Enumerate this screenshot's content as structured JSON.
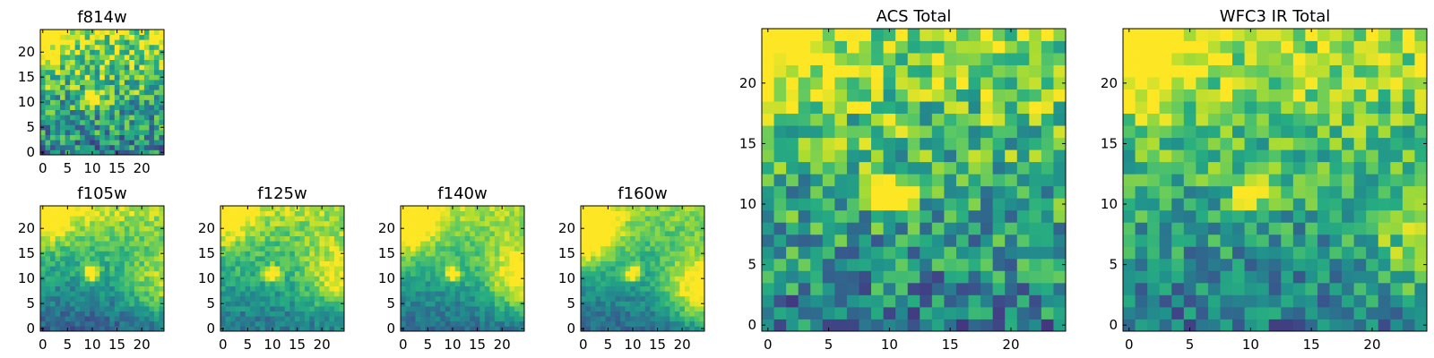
{
  "chart_data": [
    {
      "type": "heatmap",
      "title": "f814w",
      "grid": false,
      "xlim": [
        -0.5,
        24.5
      ],
      "ylim": [
        -0.5,
        24.5
      ],
      "xticks": [
        0,
        5,
        10,
        15,
        20
      ],
      "yticks": [
        0,
        5,
        10,
        15,
        20
      ],
      "colormap": "viridis",
      "peak": [
        10,
        11
      ],
      "source_hot": [
        {
          "x": 0,
          "y": 24,
          "sigma": 3.5,
          "amp": 0.5
        }
      ],
      "gradient": {
        "ax": 0.0,
        "ay": 0.018,
        "base": 0.45
      },
      "noise": 0.3
    },
    {
      "type": "heatmap",
      "title": "f105w",
      "grid": false,
      "xlim": [
        -0.5,
        24.5
      ],
      "ylim": [
        -0.5,
        24.5
      ],
      "xticks": [
        0,
        5,
        10,
        15,
        20
      ],
      "yticks": [
        0,
        5,
        10,
        15,
        20
      ],
      "colormap": "viridis",
      "peak": [
        10,
        11
      ],
      "source_hot": [
        {
          "x": 0,
          "y": 24,
          "sigma": 4,
          "amp": 0.6
        },
        {
          "x": 24,
          "y": 8,
          "sigma": 5,
          "amp": 0.35
        }
      ],
      "gradient": {
        "ax": 0.0,
        "ay": 0.025,
        "base": 0.3
      },
      "noise": 0.12
    },
    {
      "type": "heatmap",
      "title": "f125w",
      "grid": false,
      "xlim": [
        -0.5,
        24.5
      ],
      "ylim": [
        -0.5,
        24.5
      ],
      "xticks": [
        0,
        5,
        10,
        15,
        20
      ],
      "yticks": [
        0,
        5,
        10,
        15,
        20
      ],
      "colormap": "viridis",
      "peak": [
        10,
        11
      ],
      "source_hot": [
        {
          "x": 0,
          "y": 24,
          "sigma": 4,
          "amp": 0.5
        },
        {
          "x": 24,
          "y": 10,
          "sigma": 5,
          "amp": 0.4
        }
      ],
      "gradient": {
        "ax": 0.0,
        "ay": 0.02,
        "base": 0.4
      },
      "noise": 0.12
    },
    {
      "type": "heatmap",
      "title": "f140w",
      "grid": false,
      "xlim": [
        -0.5,
        24.5
      ],
      "ylim": [
        -0.5,
        24.5
      ],
      "xticks": [
        0,
        5,
        10,
        15,
        20
      ],
      "yticks": [
        0,
        5,
        10,
        15,
        20
      ],
      "colormap": "viridis",
      "peak": [
        10,
        11
      ],
      "source_hot": [
        {
          "x": 0,
          "y": 22,
          "sigma": 4.5,
          "amp": 0.6
        },
        {
          "x": 24,
          "y": 10,
          "sigma": 5,
          "amp": 0.5
        }
      ],
      "gradient": {
        "ax": 0.0,
        "ay": 0.022,
        "base": 0.35
      },
      "noise": 0.1
    },
    {
      "type": "heatmap",
      "title": "f160w",
      "grid": false,
      "xlim": [
        -0.5,
        24.5
      ],
      "ylim": [
        -0.5,
        24.5
      ],
      "xticks": [
        0,
        5,
        10,
        15,
        20
      ],
      "yticks": [
        0,
        5,
        10,
        15,
        20
      ],
      "colormap": "viridis",
      "peak": [
        10,
        11
      ],
      "source_hot": [
        {
          "x": 0,
          "y": 20,
          "sigma": 4.5,
          "amp": 0.7
        },
        {
          "x": 24,
          "y": 8,
          "sigma": 5,
          "amp": 0.6
        }
      ],
      "gradient": {
        "ax": 0.0,
        "ay": 0.02,
        "base": 0.35
      },
      "noise": 0.1
    },
    {
      "type": "heatmap",
      "title": "ACS Total",
      "grid": false,
      "xlim": [
        -0.5,
        24.5
      ],
      "ylim": [
        -0.5,
        24.5
      ],
      "xticks": [
        0,
        5,
        10,
        15,
        20
      ],
      "yticks": [
        0,
        5,
        10,
        15,
        20
      ],
      "colormap": "viridis",
      "peak": [
        10,
        11
      ],
      "source_hot": [
        {
          "x": 0,
          "y": 23,
          "sigma": 3.5,
          "amp": 0.45
        }
      ],
      "gradient": {
        "ax": 0.0,
        "ay": 0.018,
        "base": 0.42
      },
      "noise": 0.28
    },
    {
      "type": "heatmap",
      "title": "WFC3 IR Total",
      "grid": false,
      "xlim": [
        -0.5,
        24.5
      ],
      "ylim": [
        -0.5,
        24.5
      ],
      "xticks": [
        0,
        5,
        10,
        15,
        20
      ],
      "yticks": [
        0,
        5,
        10,
        15,
        20
      ],
      "colormap": "viridis",
      "peak": [
        10,
        11
      ],
      "source_hot": [
        {
          "x": 0,
          "y": 23,
          "sigma": 3.5,
          "amp": 0.5
        },
        {
          "x": 24,
          "y": 6,
          "sigma": 3,
          "amp": 0.3
        }
      ],
      "gradient": {
        "ax": 0.0,
        "ay": 0.02,
        "base": 0.4
      },
      "noise": 0.22
    }
  ]
}
